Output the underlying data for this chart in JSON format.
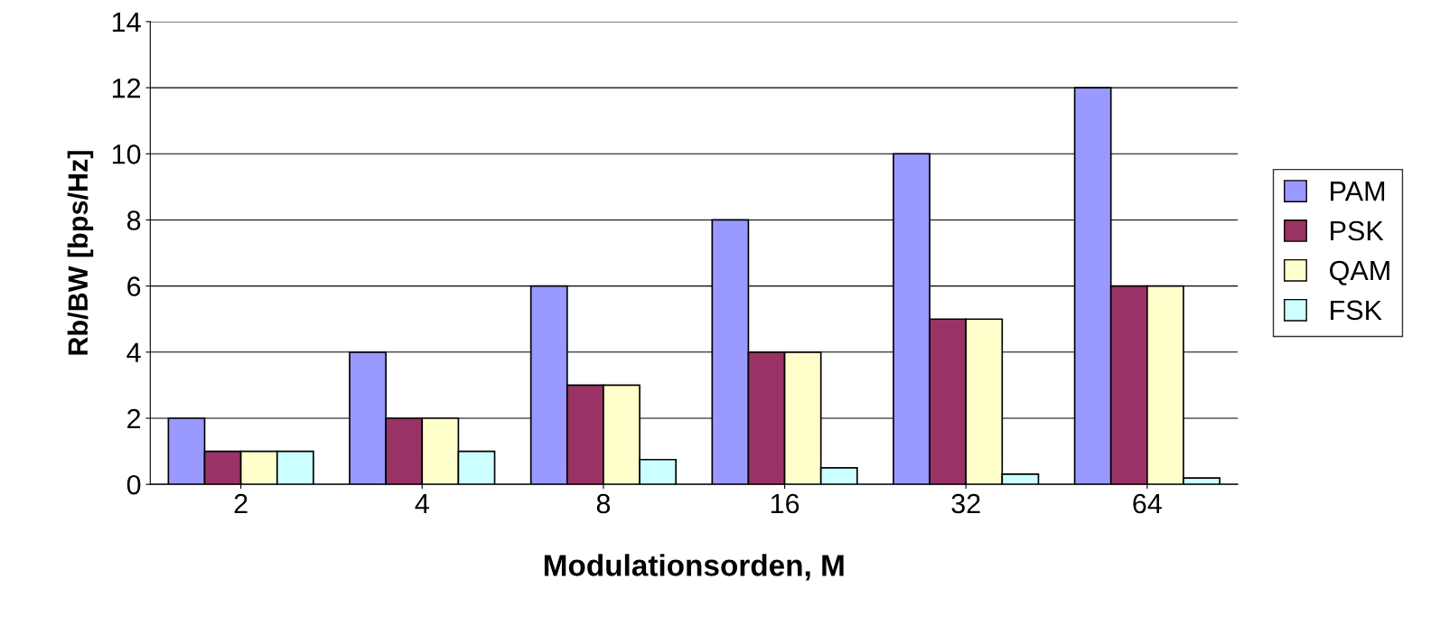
{
  "chart_data": {
    "type": "bar",
    "xlabel": "Modulationsorden, M",
    "ylabel": "Rb/BW [bps/Hz]",
    "categories": [
      "2",
      "4",
      "8",
      "16",
      "32",
      "64"
    ],
    "series": [
      {
        "name": "PAM",
        "color": "#9999ff",
        "values": [
          2,
          4,
          6,
          8,
          10,
          12
        ]
      },
      {
        "name": "PSK",
        "color": "#993366",
        "values": [
          1,
          2,
          3,
          4,
          5,
          6
        ]
      },
      {
        "name": "QAM",
        "color": "#ffffcc",
        "values": [
          1,
          2,
          3,
          4,
          5,
          6
        ]
      },
      {
        "name": "FSK",
        "color": "#ccffff",
        "values": [
          1,
          1,
          0.75,
          0.5,
          0.31,
          0.19
        ]
      }
    ],
    "ylim": [
      0,
      14
    ],
    "yticks": [
      0,
      2,
      4,
      6,
      8,
      10,
      12,
      14
    ],
    "grid": "y",
    "legend": "right"
  }
}
